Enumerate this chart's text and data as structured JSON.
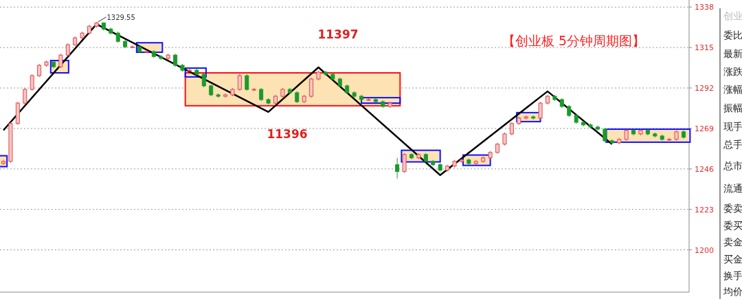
{
  "chart_data": {
    "type": "candlestick",
    "title": "【创业板 5分钟周期图】",
    "categories": [
      null,
      null,
      null,
      null,
      null,
      null,
      null,
      null,
      null,
      null,
      null,
      null,
      null,
      null,
      null,
      null,
      null,
      null,
      null,
      null,
      null,
      null,
      null,
      null,
      null,
      null,
      null,
      null,
      null,
      null,
      null,
      null,
      null,
      null,
      null,
      null,
      null,
      null,
      null,
      null,
      null,
      null,
      null,
      null,
      null,
      null,
      null,
      null,
      null,
      null,
      null,
      null,
      null,
      null,
      null,
      null,
      null,
      null,
      null,
      null,
      null,
      null,
      null,
      null,
      null,
      null,
      null,
      null,
      null,
      null,
      null,
      null,
      null,
      null,
      null,
      null,
      null,
      null,
      null,
      null,
      null,
      null,
      null,
      null,
      null,
      null,
      null,
      null,
      null,
      null,
      null,
      null,
      null,
      null,
      null,
      null
    ],
    "ohlc": [
      [
        1249.1,
        1251.1,
        1248.3,
        1250.3
      ],
      [
        1250.3,
        1272.6,
        1249.5,
        1271.8
      ],
      [
        1271.8,
        1284.2,
        1271.0,
        1283.4
      ],
      [
        1283.4,
        1292.0,
        1282.6,
        1291.2
      ],
      [
        1291.2,
        1299.8,
        1290.4,
        1299.0
      ],
      [
        1299.0,
        1305.7,
        1298.2,
        1304.9
      ],
      [
        1304.9,
        1307.6,
        1304.1,
        1306.8
      ],
      [
        1306.8,
        1307.6,
        1303.3,
        1304.1
      ],
      [
        1304.1,
        1311.5,
        1303.3,
        1310.7
      ],
      [
        1310.7,
        1317.4,
        1309.9,
        1316.6
      ],
      [
        1316.6,
        1321.3,
        1315.8,
        1320.5
      ],
      [
        1320.5,
        1324.0,
        1319.7,
        1323.2
      ],
      [
        1323.2,
        1327.9,
        1322.4,
        1327.1
      ],
      [
        1327.1,
        1329.55,
        1326.3,
        1329.0
      ],
      [
        1329.0,
        1329.2,
        1324.7,
        1325.5
      ],
      [
        1325.5,
        1326.3,
        1322.4,
        1323.2
      ],
      [
        1323.2,
        1324.0,
        1317.7,
        1318.5
      ],
      [
        1318.5,
        1319.3,
        1314.6,
        1315.4
      ],
      [
        1315.4,
        1316.2,
        1314.6,
        1315.4
      ],
      [
        1315.4,
        1316.2,
        1311.9,
        1312.7
      ],
      [
        1312.7,
        1313.5,
        1311.9,
        1312.7
      ],
      [
        1312.7,
        1313.5,
        1309.1,
        1309.9
      ],
      [
        1309.9,
        1310.7,
        1308.0,
        1308.8
      ],
      [
        1308.8,
        1311.5,
        1308.0,
        1310.7
      ],
      [
        1310.7,
        1311.5,
        1304.1,
        1304.9
      ],
      [
        1304.9,
        1305.7,
        1301.3,
        1302.1
      ],
      [
        1302.1,
        1302.9,
        1301.3,
        1302.1
      ],
      [
        1302.1,
        1302.9,
        1299.0,
        1299.8
      ],
      [
        1299.8,
        1300.6,
        1292.4,
        1293.2
      ],
      [
        1293.2,
        1294.0,
        1287.3,
        1288.1
      ],
      [
        1288.1,
        1288.9,
        1286.5,
        1287.3
      ],
      [
        1287.3,
        1288.9,
        1286.5,
        1288.1
      ],
      [
        1288.1,
        1292.0,
        1287.3,
        1291.2
      ],
      [
        1291.2,
        1300.6,
        1290.4,
        1299.0
      ],
      [
        1299.0,
        1299.8,
        1290.4,
        1291.2
      ],
      [
        1291.2,
        1292.0,
        1290.4,
        1291.2
      ],
      [
        1291.2,
        1292.0,
        1284.6,
        1285.4
      ],
      [
        1285.4,
        1286.2,
        1282.6,
        1283.4
      ],
      [
        1283.4,
        1288.1,
        1282.6,
        1287.3
      ],
      [
        1287.3,
        1292.0,
        1286.5,
        1291.2
      ],
      [
        1291.2,
        1292.0,
        1288.5,
        1289.3
      ],
      [
        1289.3,
        1290.1,
        1283.4,
        1284.2
      ],
      [
        1284.2,
        1288.1,
        1283.4,
        1287.3
      ],
      [
        1287.3,
        1297.9,
        1286.5,
        1297.1
      ],
      [
        1297.1,
        1301.8,
        1296.3,
        1301.0
      ],
      [
        1301.0,
        1301.8,
        1299.0,
        1299.8
      ],
      [
        1299.8,
        1300.6,
        1296.3,
        1297.1
      ],
      [
        1297.1,
        1297.9,
        1292.4,
        1293.2
      ],
      [
        1293.2,
        1294.0,
        1288.5,
        1289.3
      ],
      [
        1289.3,
        1290.1,
        1286.5,
        1287.3
      ],
      [
        1287.3,
        1288.1,
        1284.6,
        1285.4
      ],
      [
        1285.4,
        1286.2,
        1284.6,
        1285.4
      ],
      [
        1285.4,
        1286.2,
        1283.4,
        1284.2
      ],
      [
        1284.2,
        1285.0,
        1280.7,
        1281.5
      ],
      [
        1281.5,
        1284.2,
        1280.7,
        1283.4
      ],
      [
        1248.4,
        1252.3,
        1240.6,
        1244.5
      ],
      [
        1244.5,
        1255.0,
        1243.7,
        1254.2
      ],
      [
        1254.2,
        1255.0,
        1251.5,
        1252.3
      ],
      [
        1252.3,
        1255.0,
        1251.5,
        1254.2
      ],
      [
        1254.2,
        1255.0,
        1249.5,
        1250.3
      ],
      [
        1250.3,
        1251.1,
        1247.6,
        1248.4
      ],
      [
        1248.4,
        1249.2,
        1244.5,
        1245.3
      ],
      [
        1245.3,
        1248.4,
        1244.5,
        1247.6
      ],
      [
        1247.6,
        1251.1,
        1246.8,
        1250.3
      ],
      [
        1250.3,
        1251.9,
        1249.5,
        1251.1
      ],
      [
        1251.1,
        1251.9,
        1248.3,
        1249.1
      ],
      [
        1249.1,
        1251.1,
        1248.3,
        1250.3
      ],
      [
        1250.3,
        1253.1,
        1249.5,
        1252.3
      ],
      [
        1252.3,
        1256.2,
        1251.5,
        1255.4
      ],
      [
        1255.4,
        1260.9,
        1254.6,
        1260.1
      ],
      [
        1260.1,
        1266.7,
        1259.3,
        1265.9
      ],
      [
        1265.9,
        1272.6,
        1265.1,
        1271.8
      ],
      [
        1271.8,
        1275.7,
        1271.0,
        1274.9
      ],
      [
        1274.9,
        1276.4,
        1274.1,
        1275.6
      ],
      [
        1275.6,
        1276.4,
        1274.1,
        1274.9
      ],
      [
        1274.9,
        1284.2,
        1274.1,
        1283.4
      ],
      [
        1283.4,
        1288.1,
        1282.6,
        1287.3
      ],
      [
        1287.3,
        1288.1,
        1284.6,
        1285.4
      ],
      [
        1285.4,
        1286.2,
        1280.7,
        1281.5
      ],
      [
        1281.5,
        1282.3,
        1275.6,
        1276.4
      ],
      [
        1276.4,
        1277.2,
        1271.7,
        1272.5
      ],
      [
        1272.5,
        1273.3,
        1270.2,
        1271.0
      ],
      [
        1271.0,
        1271.8,
        1269.0,
        1269.8
      ],
      [
        1269.8,
        1270.6,
        1267.8,
        1268.6
      ],
      [
        1268.6,
        1269.4,
        1261.2,
        1262.0
      ],
      [
        1262.0,
        1262.8,
        1260.0,
        1260.8
      ],
      [
        1260.8,
        1263.6,
        1260.0,
        1262.8
      ],
      [
        1262.8,
        1268.7,
        1262.0,
        1267.9
      ],
      [
        1267.9,
        1268.7,
        1265.1,
        1265.9
      ],
      [
        1265.9,
        1268.7,
        1265.1,
        1267.9
      ],
      [
        1267.9,
        1268.7,
        1265.1,
        1265.9
      ],
      [
        1265.9,
        1266.7,
        1263.9,
        1264.7
      ],
      [
        1264.7,
        1265.5,
        1262.0,
        1262.8
      ],
      [
        1262.8,
        1263.6,
        1262.0,
        1262.8
      ],
      [
        1262.8,
        1267.9,
        1262.0,
        1267.1
      ],
      [
        1267.1,
        1267.9,
        1263.2,
        1264.0
      ]
    ],
    "series": [
      {
        "type": "line",
        "color": "#000000",
        "values": [
          1268.0,
          null,
          null,
          null,
          null,
          null,
          null,
          null,
          null,
          null,
          null,
          null,
          null,
          1328.3,
          null,
          null,
          null,
          null,
          null,
          null,
          null,
          null,
          null,
          null,
          null,
          null,
          null,
          null,
          null,
          null,
          null,
          null,
          null,
          null,
          null,
          null,
          null,
          1278.4,
          null,
          null,
          null,
          null,
          null,
          null,
          1303.7,
          null,
          null,
          null,
          null,
          null,
          null,
          null,
          null,
          null,
          null,
          null,
          null,
          null,
          null,
          null,
          null,
          1242.5,
          null,
          null,
          null,
          null,
          null,
          null,
          null,
          null,
          null,
          null,
          null,
          null,
          null,
          null,
          1290.1,
          null,
          null,
          null,
          null,
          null,
          null,
          null,
          null,
          1260.1,
          null,
          null,
          null,
          null,
          null,
          null,
          null,
          null,
          null,
          null
        ]
      }
    ],
    "ylim": [
      1176,
      1342
    ],
    "yticks": [
      1200,
      1223,
      1246,
      1269,
      1292,
      1315,
      1338
    ],
    "grid": "y",
    "tick_labels": "y",
    "annotations": [
      "1329.55",
      "11397",
      "11396",
      "创业",
      "委比",
      "最新",
      "涨跌",
      "涨幅",
      "振幅",
      "现手",
      "总手",
      "总市",
      "流通",
      "委卖",
      "委买",
      "卖金",
      "买金",
      "换手",
      "均价"
    ]
  }
}
